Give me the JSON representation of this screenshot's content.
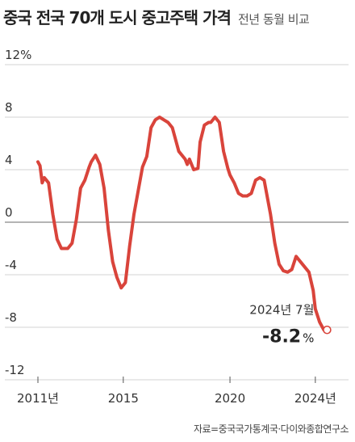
{
  "chart_data": {
    "type": "line",
    "title": "중국 전국 70개 도시 중고주택 가격",
    "subtitle": "전년 동월 비교",
    "ylim": [
      -12,
      12
    ],
    "yticks": [
      12,
      8,
      4,
      0,
      -4,
      -8,
      -12
    ],
    "yticklabels": [
      "12%",
      "8",
      "4",
      "0",
      "-4",
      "-8",
      "-12"
    ],
    "xlim": [
      2011.0,
      2024.8
    ],
    "xticks": [
      2011,
      2015,
      2020,
      2024
    ],
    "xticklabels": [
      "2011년",
      "2015",
      "2020",
      "2024년"
    ],
    "grid": "horizontal",
    "series": [
      {
        "color": "#d9443b",
        "x": [
          2011.0,
          2011.1,
          2011.2,
          2011.3,
          2011.5,
          2011.7,
          2011.9,
          2012.1,
          2012.4,
          2012.6,
          2012.8,
          2013.0,
          2013.2,
          2013.4,
          2013.5,
          2013.7,
          2013.9,
          2014.1,
          2014.3,
          2014.5,
          2014.7,
          2014.9,
          2015.1,
          2015.3,
          2015.5,
          2015.7,
          2015.9,
          2016.1,
          2016.3,
          2016.5,
          2016.7,
          2016.9,
          2017.1,
          2017.3,
          2017.6,
          2017.9,
          2018.0,
          2018.1,
          2018.3,
          2018.5,
          2018.6,
          2018.8,
          2019.0,
          2019.1,
          2019.3,
          2019.5,
          2019.7,
          2019.9,
          2020.0,
          2020.2,
          2020.4,
          2020.6,
          2020.8,
          2021.0,
          2021.2,
          2021.4,
          2021.6,
          2021.9,
          2022.1,
          2022.3,
          2022.5,
          2022.7,
          2022.9,
          2023.1,
          2023.3,
          2023.5,
          2023.7,
          2023.9,
          2024.0,
          2024.2,
          2024.4,
          2024.55
        ],
        "y": [
          4.6,
          4.3,
          3.0,
          3.4,
          3.0,
          0.6,
          -1.3,
          -2.0,
          -2.0,
          -1.6,
          0.2,
          2.6,
          3.2,
          4.2,
          4.6,
          5.1,
          4.4,
          2.6,
          -0.6,
          -3.0,
          -4.2,
          -5.0,
          -4.6,
          -1.8,
          0.6,
          2.4,
          4.2,
          5.0,
          7.2,
          7.8,
          8.0,
          7.8,
          7.6,
          7.2,
          5.4,
          4.8,
          4.4,
          4.8,
          4.0,
          4.1,
          6.1,
          7.4,
          7.6,
          7.6,
          8.0,
          7.6,
          5.4,
          4.1,
          3.6,
          3.0,
          2.2,
          2.0,
          2.0,
          2.2,
          3.2,
          3.4,
          3.2,
          0.6,
          -1.6,
          -3.2,
          -3.7,
          -3.8,
          -3.6,
          -2.6,
          -3.0,
          -3.4,
          -3.8,
          -5.2,
          -6.6,
          -7.6,
          -8.2,
          -8.2
        ]
      }
    ],
    "annotation": {
      "label": "2024년 7월",
      "value": "-8.2",
      "unit": "%",
      "x": 2024.55,
      "y": -8.2
    }
  },
  "source": "자료=중국국가통계국·다이와종합연구소"
}
